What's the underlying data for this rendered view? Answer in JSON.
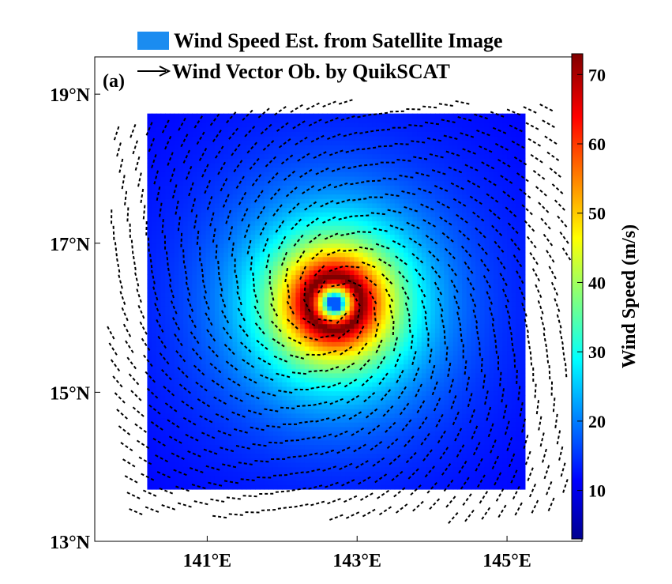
{
  "chart_data": {
    "type": "heatmap",
    "panel_label": "(a)",
    "legend": [
      {
        "kind": "patch",
        "label": "Wind Speed Est. from Satellite Image",
        "color": "#1b8cf0"
      },
      {
        "kind": "arrow",
        "label": "Wind Vector Ob. by QuikSCAT",
        "color": "#000000"
      }
    ],
    "x_axis": {
      "ticks": [
        141,
        143,
        145
      ],
      "tick_labels": [
        "141°E",
        "143°E",
        "145°E"
      ],
      "range": [
        139.5,
        146.0
      ]
    },
    "y_axis": {
      "ticks": [
        13,
        15,
        17,
        19
      ],
      "tick_labels": [
        "13°N",
        "15°N",
        "17°N",
        "19°N"
      ],
      "range": [
        13.0,
        19.5
      ]
    },
    "heatmap_extent": {
      "lon": [
        140.2,
        145.2
      ],
      "lat": [
        13.7,
        18.7
      ]
    },
    "storm_center": {
      "lon": 142.7,
      "lat": 16.2
    },
    "max_wind_speed": 72,
    "eye_wind_speed": 18,
    "colorbar": {
      "label": "Wind Speed (m/s)",
      "range": [
        3,
        73
      ],
      "ticks": [
        10,
        20,
        30,
        40,
        50,
        60,
        70
      ],
      "tick_labels": [
        "10",
        "20",
        "30",
        "40",
        "50",
        "60",
        "70"
      ],
      "colormap": "jet"
    },
    "grid": false
  }
}
